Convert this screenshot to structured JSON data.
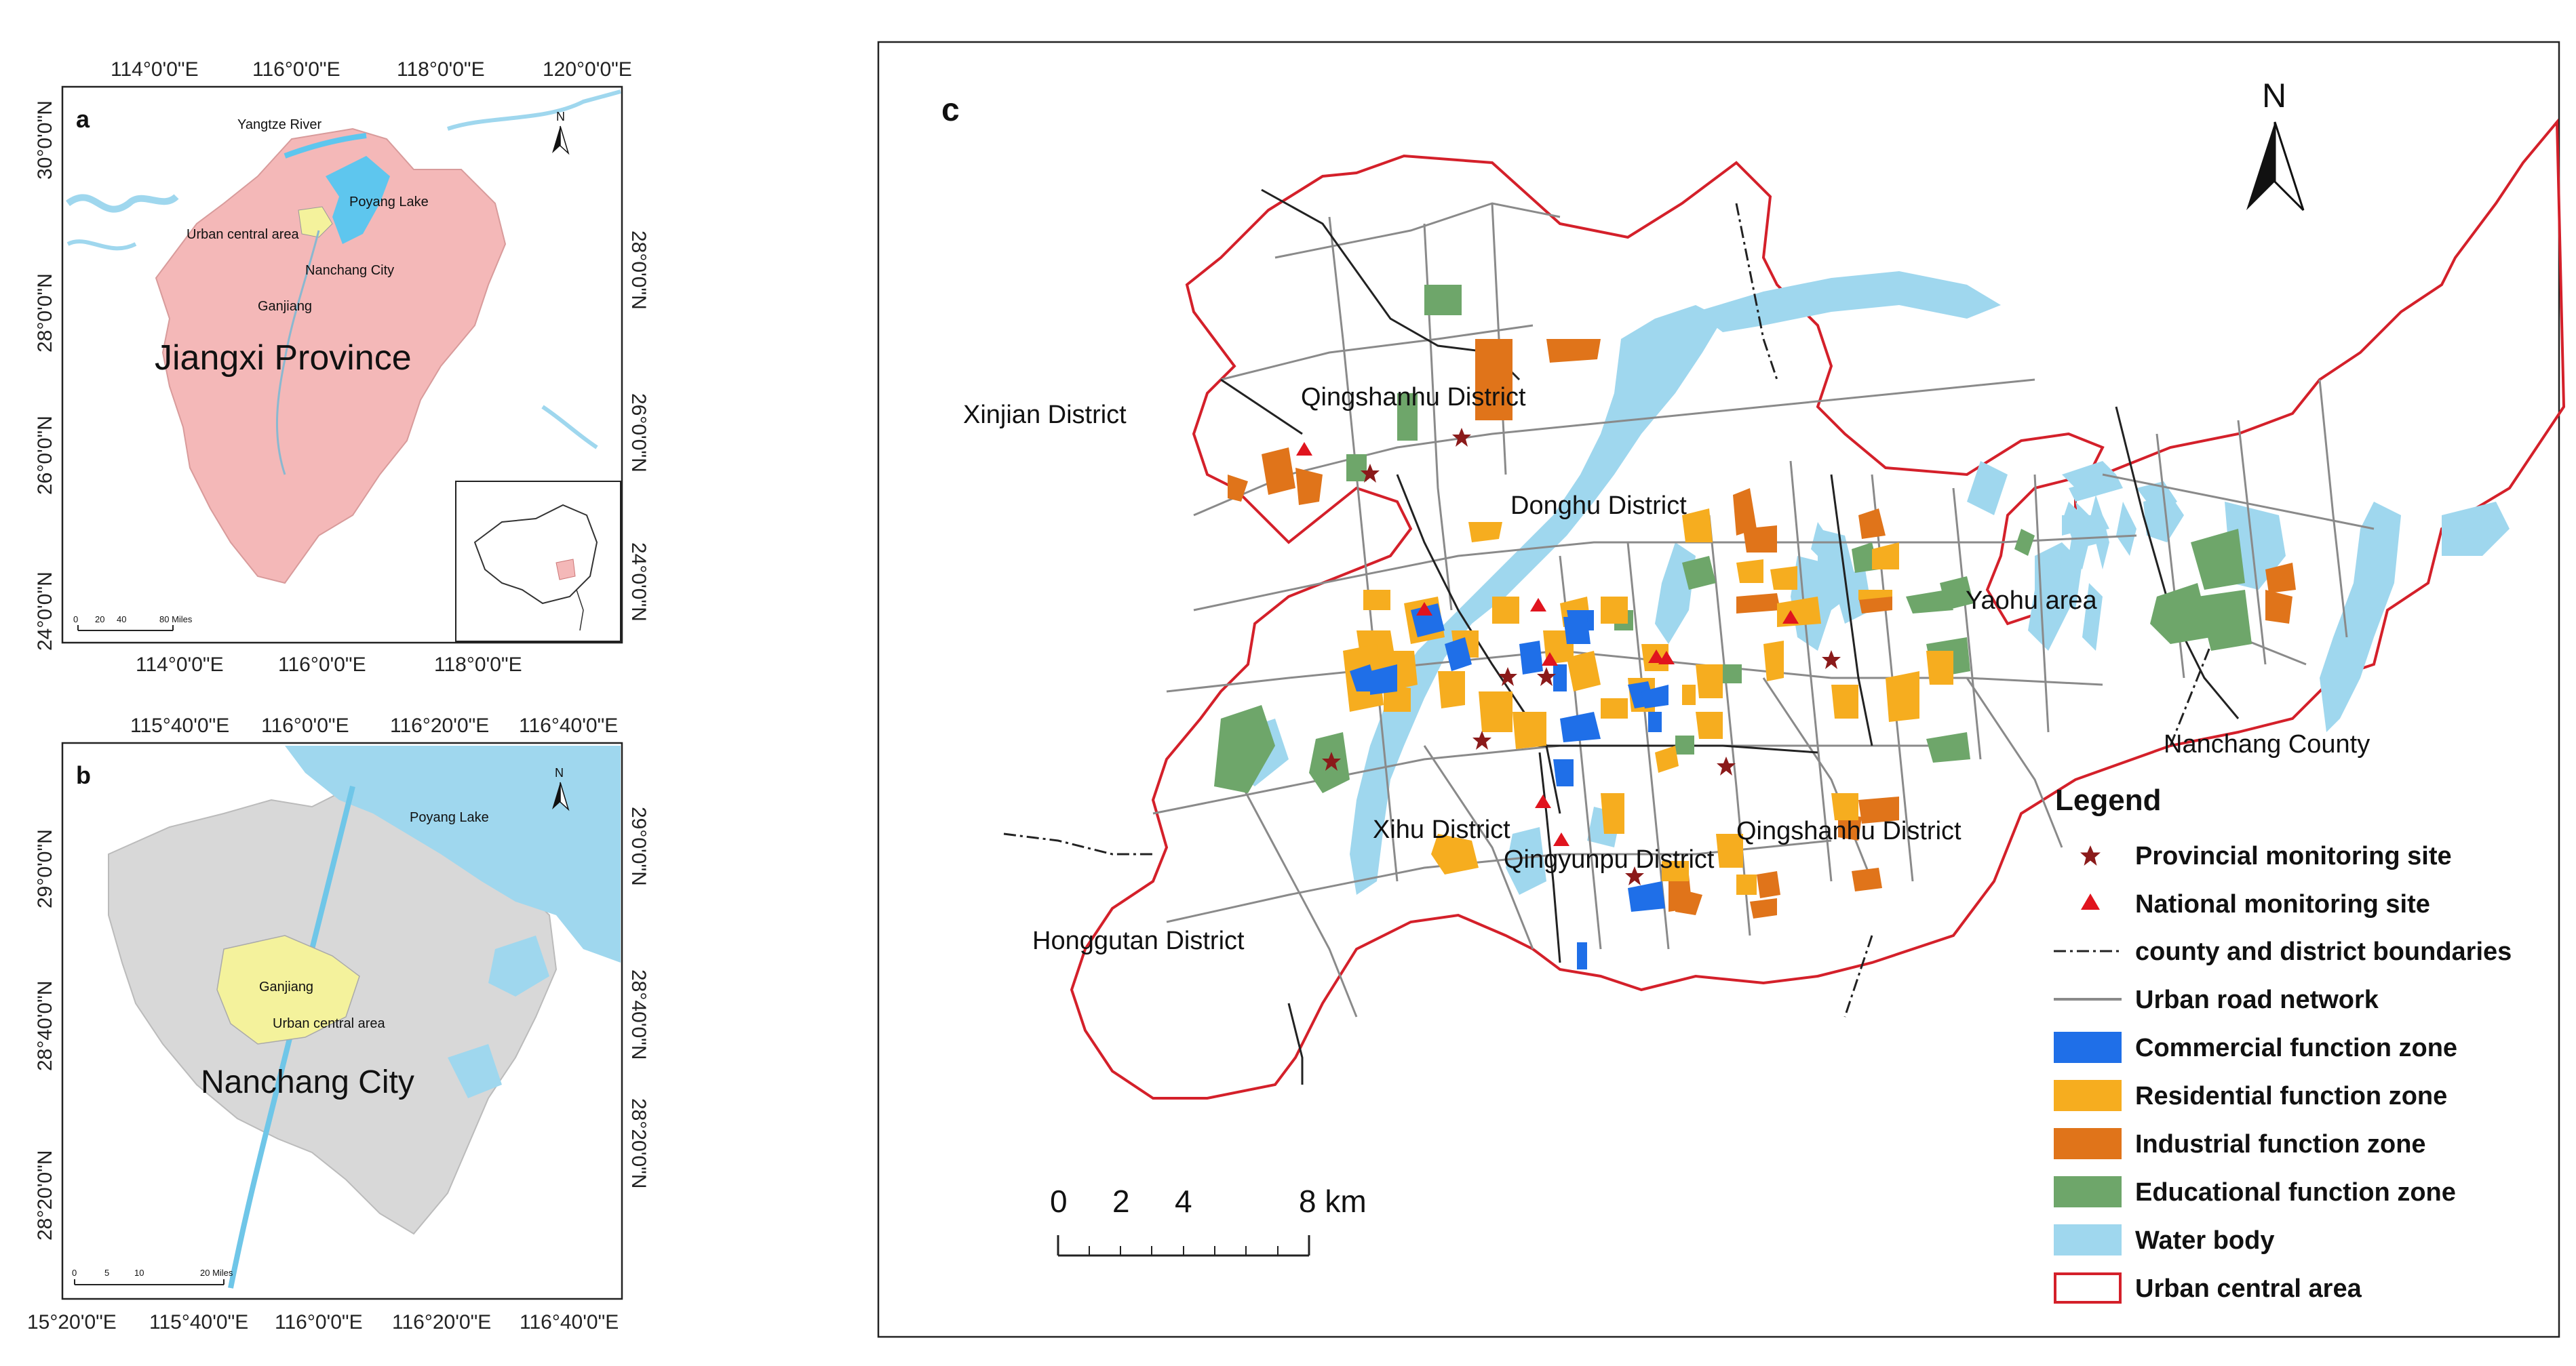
{
  "panels": {
    "a": {
      "letter": "a",
      "region_label": "Jiangxi Province",
      "place_labels": {
        "yangtze": "Yangtze River",
        "poyang": "Poyang Lake",
        "urban": "Urban central area",
        "nanchang": "Nanchang City",
        "ganjiang": "Ganjiang"
      },
      "top_ticks": [
        "114°0'0\"E",
        "116°0'0\"E",
        "118°0'0\"E",
        "120°0'0\"E"
      ],
      "bottom_ticks": [
        "114°0'0\"E",
        "116°0'0\"E",
        "118°0'0\"E"
      ],
      "left_ticks": [
        "30°0'0\"N",
        "28°0'0\"N",
        "26°0'0\"N",
        "24°0'0\"N"
      ],
      "right_ticks": [
        "28°0'0\"N",
        "26°0'0\"N",
        "24°0'0\"N"
      ],
      "scale_labels": [
        "0",
        "20",
        "40",
        "80 Miles"
      ],
      "north": "N"
    },
    "b": {
      "letter": "b",
      "region_label": "Nanchang City",
      "place_labels": {
        "poyang": "Poyang Lake",
        "ganjiang": "Ganjiang",
        "urban": "Urban central area"
      },
      "top_ticks": [
        "115°40'0\"E",
        "116°0'0\"E",
        "116°20'0\"E",
        "116°40'0\"E"
      ],
      "bottom_ticks": [
        "15°20'0\"E",
        "115°40'0\"E",
        "116°0'0\"E",
        "116°20'0\"E",
        "116°40'0\"E"
      ],
      "left_ticks": [
        "29°0'0\"N",
        "28°40'0\"N",
        "28°20'0\"N"
      ],
      "right_ticks": [
        "29°0'0\"N",
        "28°40'0\"N",
        "28°20'0\"N"
      ],
      "scale_labels": [
        "0",
        "5",
        "10",
        "20 Miles"
      ],
      "north": "N"
    },
    "c": {
      "letter": "c",
      "north": "N",
      "district_labels": {
        "xinjian": "Xinjian District",
        "qingshanhu_north": "Qingshanhu District",
        "donghu": "Donghu District",
        "yaohu": "Yaohu area",
        "nanchang_county": "Nanchang County",
        "xihu": "Xihu District",
        "qingyunpu": "Qingyunpu District",
        "qingshanhu_south": "Qingshanhu District",
        "honggutan": "Honggutan District"
      },
      "scale_labels": [
        "0",
        "2",
        "4",
        "8 km"
      ]
    }
  },
  "legend": {
    "title": "Legend",
    "items": [
      {
        "label": "Provincial monitoring site",
        "symbol": "star",
        "color": "#8b1a1a"
      },
      {
        "label": "National monitoring site",
        "symbol": "triangle",
        "color": "#e0141e"
      },
      {
        "label": "county and district boundaries",
        "symbol": "dashdot-line",
        "color": "#222222"
      },
      {
        "label": "Urban road network",
        "symbol": "line",
        "color": "#8a8a8a"
      },
      {
        "label": "Commercial function zone",
        "symbol": "fill",
        "color": "#1f6fe8"
      },
      {
        "label": "Residential function zone",
        "symbol": "fill",
        "color": "#f6ad1f"
      },
      {
        "label": "Industrial function zone",
        "symbol": "fill",
        "color": "#e0741a"
      },
      {
        "label": "Educational function zone",
        "symbol": "fill",
        "color": "#6ea66a"
      },
      {
        "label": "Water body",
        "symbol": "fill",
        "color": "#9fd7ee"
      },
      {
        "label": "Urban central area",
        "symbol": "outline",
        "color": "#d4202a"
      }
    ]
  },
  "colors": {
    "province_fill": "#f4b8b8",
    "city_fill": "#d8d8d8",
    "urban_highlight": "#f4f29c",
    "water": "#9fd7ee",
    "road": "#8a8a8a",
    "boundary": "#222222",
    "urban_boundary": "#d4202a"
  }
}
